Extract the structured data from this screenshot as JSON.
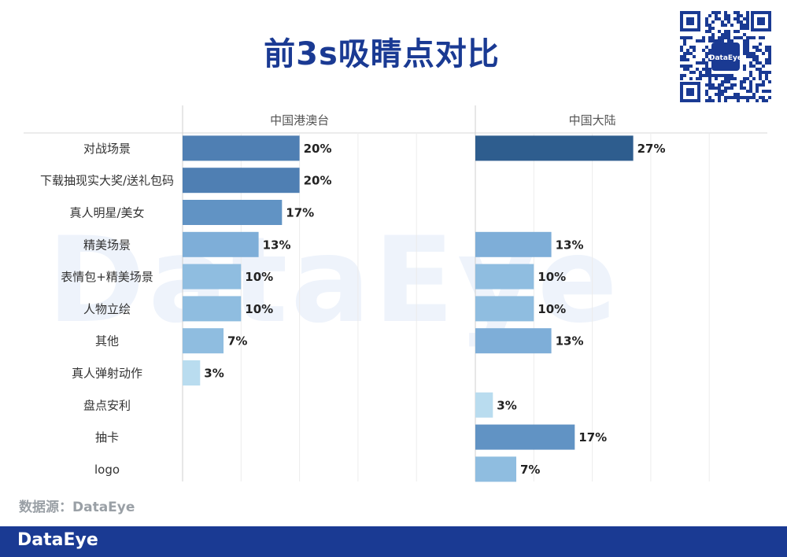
{
  "title": "前3s吸睛点对比",
  "watermark": "DataEye",
  "qr_badge": "DataEye",
  "source": "数据源：DataEye",
  "footer_logo": "DataEye",
  "colors": {
    "title": "#1a3a93",
    "footer": "#1a3a93",
    "bar_dark": "#2e5d8e",
    "bar_mid": "#4f7fb3",
    "bar_light": "#8fbde0",
    "bar_lightest": "#b9dcef"
  },
  "chart_data": {
    "type": "bar",
    "orientation": "horizontal",
    "categories": [
      "对战场景",
      "下载抽现实大奖/送礼包码",
      "真人明星/美女",
      "精美场景",
      "表情包+精美场景",
      "人物立绘",
      "其他",
      "真人弹射动作",
      "盘点安利",
      "抽卡",
      "logo"
    ],
    "series": [
      {
        "name": "中国港澳台",
        "values": [
          20,
          20,
          17,
          13,
          10,
          10,
          7,
          3,
          null,
          null,
          null
        ],
        "labels": [
          "20%",
          "20%",
          "17%",
          "13%",
          "10%",
          "10%",
          "7%",
          "3%",
          "",
          "",
          ""
        ]
      },
      {
        "name": "中国大陆",
        "values": [
          27,
          null,
          null,
          13,
          10,
          10,
          13,
          null,
          3,
          17,
          7
        ],
        "labels": [
          "27%",
          "",
          "",
          "13%",
          "10%",
          "10%",
          "13%",
          "",
          "3%",
          "17%",
          "7%"
        ]
      }
    ],
    "xlim": [
      0,
      40
    ],
    "grid": true,
    "legend": "panel-headers"
  }
}
